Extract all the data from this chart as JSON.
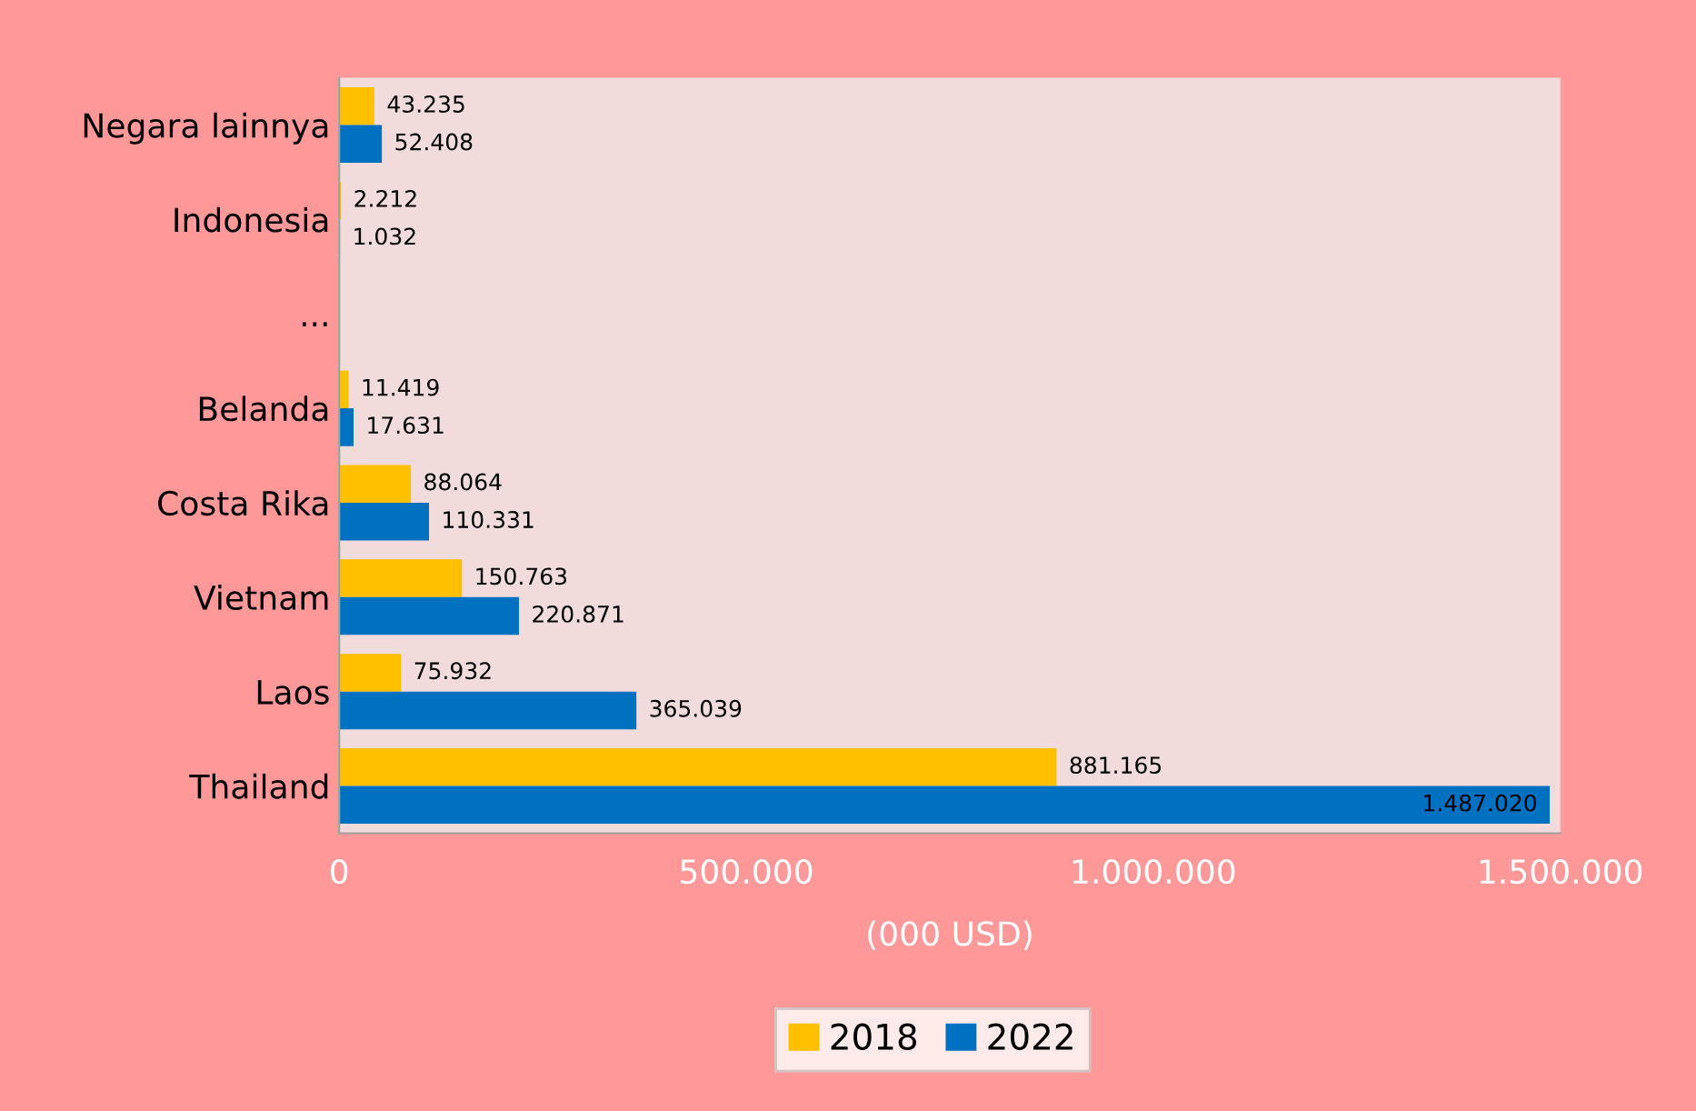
{
  "chart_data": {
    "type": "bar",
    "orientation": "horizontal",
    "categories": [
      "Negara lainnya",
      "Indonesia",
      "...",
      "Belanda",
      "Costa Rika",
      "Vietnam",
      "Laos",
      "Thailand"
    ],
    "series": [
      {
        "name": "2018",
        "color": "#ffc000",
        "values": [
          43235,
          2212,
          null,
          11419,
          88064,
          150763,
          75932,
          881165
        ],
        "value_labels": [
          "43.235",
          "2.212",
          null,
          "11.419",
          "88.064",
          "150.763",
          "75.932",
          "881.165"
        ]
      },
      {
        "name": "2022",
        "color": "#0070c0",
        "values": [
          52408,
          1032,
          null,
          17631,
          110331,
          220871,
          365039,
          1487020
        ],
        "value_labels": [
          "52.408",
          "1.032",
          null,
          "17.631",
          "110.331",
          "220.871",
          "365.039",
          "1.487.020"
        ]
      }
    ],
    "xlabel": "(000 USD)",
    "xlim": [
      0,
      1500000
    ],
    "xticks": [
      0,
      {
        "value": 500000,
        "label": "500.000"
      },
      {
        "value": 1000000,
        "label": "1.000.000"
      },
      {
        "value": 1500000,
        "label": "1.500.000"
      }
    ],
    "legend": "bottom",
    "grid": false
  }
}
